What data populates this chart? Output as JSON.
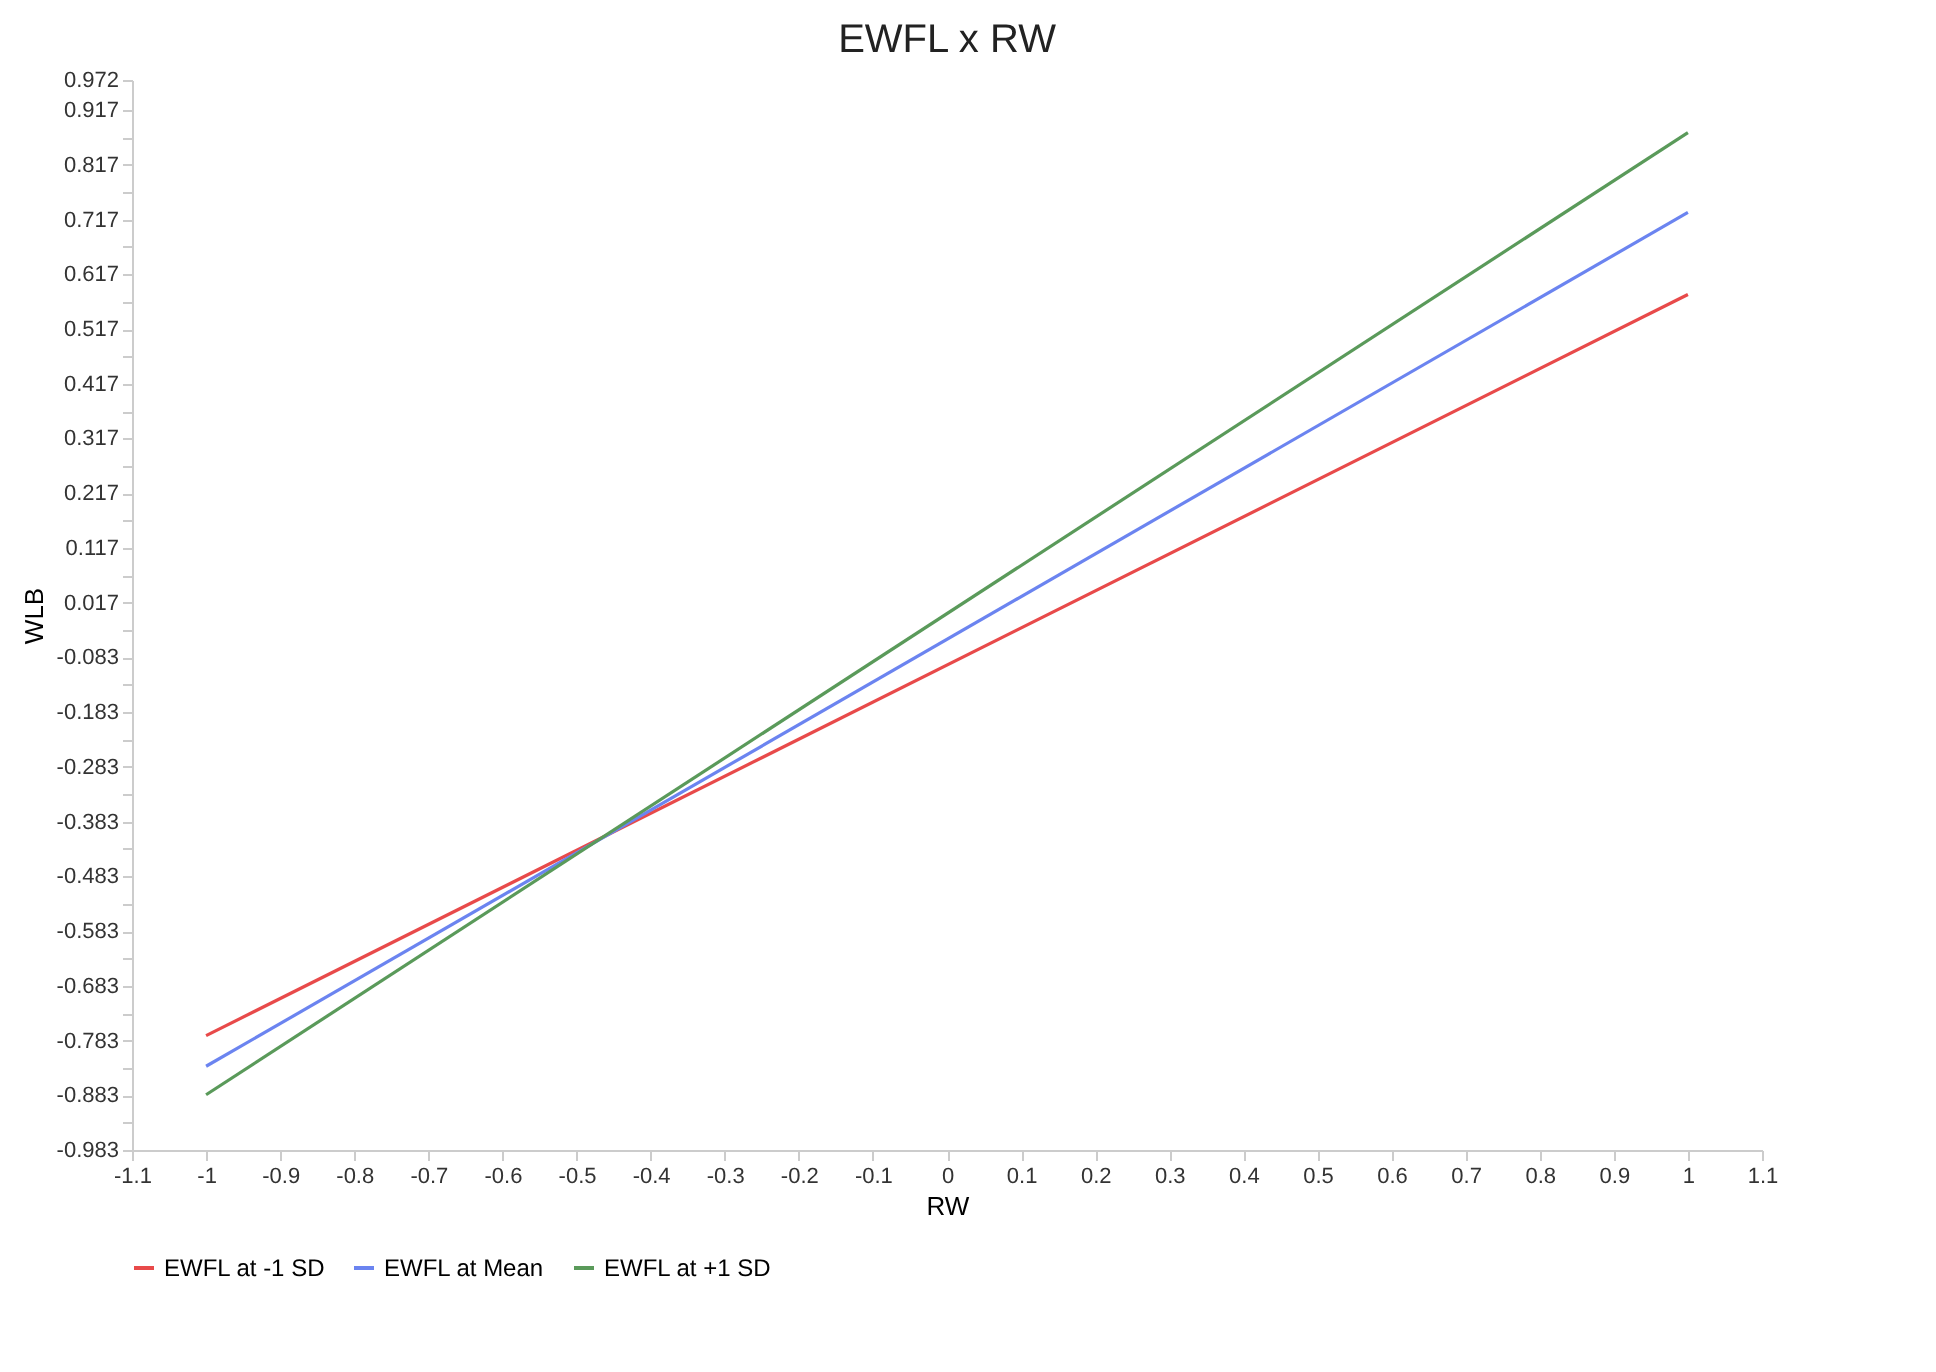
{
  "chart_data": {
    "type": "line",
    "title": "EWFL x RW",
    "xlabel": "RW",
    "ylabel": "WLB",
    "x": [
      -1,
      1
    ],
    "series": [
      {
        "name": "EWFL at -1 SD",
        "color": "#e84a4a",
        "values": [
          -0.774,
          0.58
        ]
      },
      {
        "name": "EWFL at Mean",
        "color": "#6b84f0",
        "values": [
          -0.83,
          0.73
        ]
      },
      {
        "name": "EWFL at +1 SD",
        "color": "#5a9a5a",
        "values": [
          -0.882,
          0.876
        ]
      }
    ],
    "xlim": [
      -1.1,
      1.1
    ],
    "xticks": [
      -1.1,
      -1,
      -0.9,
      -0.8,
      -0.7,
      -0.6,
      -0.5,
      -0.4,
      -0.3,
      -0.2,
      -0.1,
      0,
      0.1,
      0.2,
      0.3,
      0.4,
      0.5,
      0.6,
      0.7,
      0.8,
      0.9,
      1,
      1.1
    ],
    "ylim": [
      -0.983,
      0.972
    ],
    "yticks": [
      -0.983,
      {
        "value": -0.933,
        "label": null
      },
      -0.883,
      {
        "value": -0.833,
        "label": null
      },
      -0.783,
      {
        "value": -0.733,
        "label": null
      },
      -0.683,
      {
        "value": -0.633,
        "label": null
      },
      -0.583,
      {
        "value": -0.533,
        "label": null
      },
      -0.483,
      {
        "value": -0.433,
        "label": null
      },
      -0.383,
      {
        "value": -0.333,
        "label": null
      },
      -0.283,
      {
        "value": -0.233,
        "label": null
      },
      -0.183,
      {
        "value": -0.133,
        "label": null
      },
      -0.083,
      {
        "value": -0.033,
        "label": null
      },
      0.017,
      {
        "value": 0.067,
        "label": null
      },
      0.117,
      {
        "value": 0.167,
        "label": null
      },
      0.217,
      {
        "value": 0.267,
        "label": null
      },
      0.317,
      {
        "value": 0.367,
        "label": null
      },
      0.417,
      {
        "value": 0.467,
        "label": null
      },
      0.517,
      {
        "value": 0.567,
        "label": null
      },
      0.617,
      {
        "value": 0.667,
        "label": null
      },
      0.717,
      {
        "value": 0.767,
        "label": null
      },
      0.817,
      {
        "value": 0.867,
        "label": null
      },
      0.917,
      0.972
    ],
    "grid": false,
    "legend": "bottom",
    "marker": "none",
    "line_style": "solid"
  }
}
